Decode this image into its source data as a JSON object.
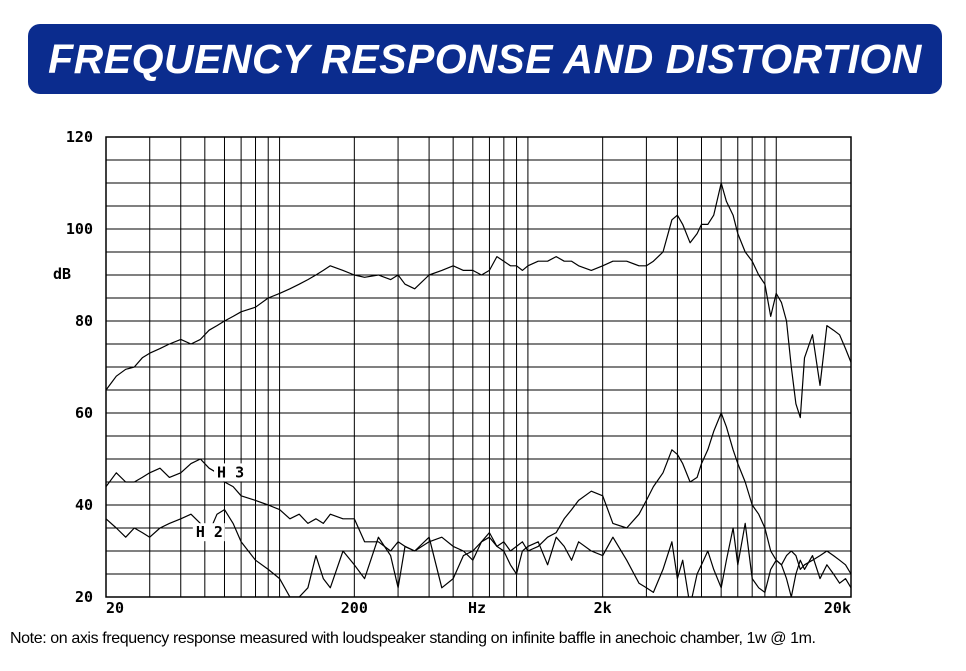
{
  "banner": {
    "title": "FREQUENCY RESPONSE AND DISTORTION"
  },
  "note": "Note: on axis frequency response measured with loudspeaker standing on infinite baffle in anechoic chamber, 1w @ 1m.",
  "chart_data": {
    "type": "line",
    "xscale": "log",
    "xlim": [
      20,
      20000
    ],
    "ylim": [
      20,
      120
    ],
    "xlabel": "Hz",
    "ylabel": "dB",
    "x_tick_labels": [
      {
        "value": 20,
        "label": "20"
      },
      {
        "value": 200,
        "label": "200"
      },
      {
        "value": 2000,
        "label": "2k"
      },
      {
        "value": 20000,
        "label": "20k"
      }
    ],
    "y_tick_labels": [
      {
        "value": 20,
        "label": "20"
      },
      {
        "value": 40,
        "label": "40"
      },
      {
        "value": 60,
        "label": "60"
      },
      {
        "value": 80,
        "label": "80"
      },
      {
        "value": 100,
        "label": "100"
      },
      {
        "value": 120,
        "label": "120"
      }
    ],
    "grid": true,
    "legend": "none",
    "annotations": [
      {
        "text": "H 3",
        "x": 56,
        "y": 46
      },
      {
        "text": "H 2",
        "x": 46,
        "y": 33
      }
    ],
    "series": [
      {
        "x": [
          20,
          22,
          24,
          26,
          28,
          30,
          33,
          36,
          40,
          44,
          48,
          52,
          56,
          60,
          65,
          70,
          80,
          90,
          100,
          110,
          120,
          130,
          140,
          150,
          160,
          180,
          200,
          220,
          250,
          280,
          300,
          320,
          350,
          400,
          450,
          500,
          550,
          600,
          650,
          700,
          750,
          800,
          850,
          900,
          950,
          1000,
          1100,
          1200,
          1300,
          1400,
          1500,
          1600,
          1800,
          2000,
          2200,
          2500,
          2800,
          3000,
          3200,
          3500,
          3800,
          4000,
          4200,
          4500,
          4800,
          5000,
          5300,
          5600,
          6000,
          6300,
          6700,
          7000,
          7500,
          8000,
          8500,
          9000,
          9500,
          10000,
          10500,
          11000,
          11500,
          12000,
          12500,
          13000,
          14000,
          15000,
          16000,
          17000,
          18000,
          19000,
          20000
        ],
        "y": [
          65,
          68,
          69.5,
          70,
          72,
          73,
          74,
          75,
          76,
          75,
          76,
          78,
          79,
          80,
          81,
          82,
          83,
          85,
          86,
          87,
          88,
          89,
          90,
          91,
          92,
          91,
          90,
          89.5,
          90,
          89,
          90,
          88,
          87,
          90,
          91,
          92,
          91,
          91,
          90,
          91,
          94,
          93,
          92,
          92,
          91,
          92,
          93,
          93,
          94,
          93,
          93,
          92,
          91,
          92,
          93,
          93,
          92,
          92,
          93,
          95,
          102,
          103,
          101,
          97,
          99,
          101,
          101,
          103,
          110,
          106,
          103,
          99,
          95,
          93,
          90,
          88,
          81,
          86,
          84,
          80,
          70,
          62,
          59,
          72,
          77,
          66,
          79,
          78,
          77,
          74,
          71
        ]
      },
      {
        "x": [
          20,
          22,
          24,
          26,
          28,
          30,
          33,
          36,
          40,
          44,
          48,
          52,
          56,
          60,
          65,
          70,
          80,
          90,
          100,
          110,
          120,
          130,
          140,
          150,
          160,
          180,
          200,
          220,
          250,
          280,
          300,
          320,
          350,
          400,
          450,
          500,
          550,
          600,
          650,
          700,
          750,
          800,
          850,
          900,
          950,
          1000,
          1100,
          1200,
          1300,
          1400,
          1500,
          1600,
          1800,
          2000,
          2200,
          2500,
          2800,
          3000,
          3200,
          3500,
          3800,
          4000,
          4200,
          4500,
          4800,
          5000,
          5300,
          5600,
          6000,
          6300,
          6700,
          7000,
          7500,
          8000,
          8500,
          9000,
          9500,
          10000,
          10500,
          11000,
          11500,
          12000,
          12500,
          13000,
          14000,
          15000,
          16000,
          17000,
          18000,
          19000,
          20000
        ],
        "y": [
          44,
          47,
          45,
          45,
          46,
          47,
          48,
          46,
          47,
          49,
          50,
          48,
          47,
          45,
          44,
          42,
          41,
          40,
          39,
          37,
          38,
          36,
          37,
          36,
          38,
          37,
          37,
          32,
          32,
          30,
          32,
          31,
          30,
          32,
          33,
          31,
          30,
          28,
          32,
          34,
          31,
          32,
          30,
          31,
          32,
          30,
          31,
          33,
          34,
          37,
          39,
          41,
          43,
          42,
          36,
          35,
          38,
          41,
          44,
          47,
          52,
          51,
          49,
          45,
          46,
          49,
          52,
          56,
          60,
          57,
          52,
          49,
          45,
          40,
          38,
          35,
          30,
          28,
          27,
          29,
          30,
          29,
          26,
          27,
          28,
          29,
          30,
          29,
          28,
          27,
          25
        ]
      },
      {
        "x": [
          20,
          22,
          24,
          26,
          28,
          30,
          33,
          36,
          40,
          44,
          48,
          52,
          56,
          60,
          65,
          70,
          80,
          90,
          100,
          110,
          120,
          130,
          140,
          150,
          160,
          180,
          200,
          220,
          250,
          280,
          300,
          320,
          350,
          400,
          450,
          500,
          550,
          600,
          650,
          700,
          750,
          800,
          850,
          900,
          950,
          1000,
          1100,
          1200,
          1300,
          1400,
          1500,
          1600,
          1800,
          2000,
          2200,
          2500,
          2800,
          3000,
          3200,
          3500,
          3800,
          4000,
          4200,
          4500,
          4800,
          5000,
          5300,
          5600,
          6000,
          6300,
          6700,
          7000,
          7500,
          8000,
          8500,
          9000,
          9500,
          10000,
          10500,
          11000,
          11500,
          12000,
          12500,
          13000,
          14000,
          15000,
          16000,
          17000,
          18000,
          19000,
          20000
        ],
        "y": [
          37,
          35,
          33,
          35,
          34,
          33,
          35,
          36,
          37,
          38,
          36,
          34,
          38,
          39,
          36,
          32,
          28,
          26,
          24,
          20,
          20,
          22,
          29,
          24,
          22,
          30,
          27,
          24,
          33,
          29,
          22,
          31,
          30,
          33,
          22,
          24,
          29,
          30,
          32,
          33,
          31,
          30,
          27,
          25,
          30,
          31,
          32,
          27,
          33,
          31,
          28,
          32,
          30,
          29,
          33,
          28,
          23,
          22,
          21,
          26,
          32,
          24,
          28,
          18,
          25,
          27,
          30,
          26,
          22,
          28,
          35,
          27,
          36,
          24,
          22,
          21,
          26,
          28,
          27,
          24,
          20,
          25,
          28,
          26,
          29,
          24,
          27,
          25,
          23,
          24,
          22
        ]
      }
    ]
  }
}
